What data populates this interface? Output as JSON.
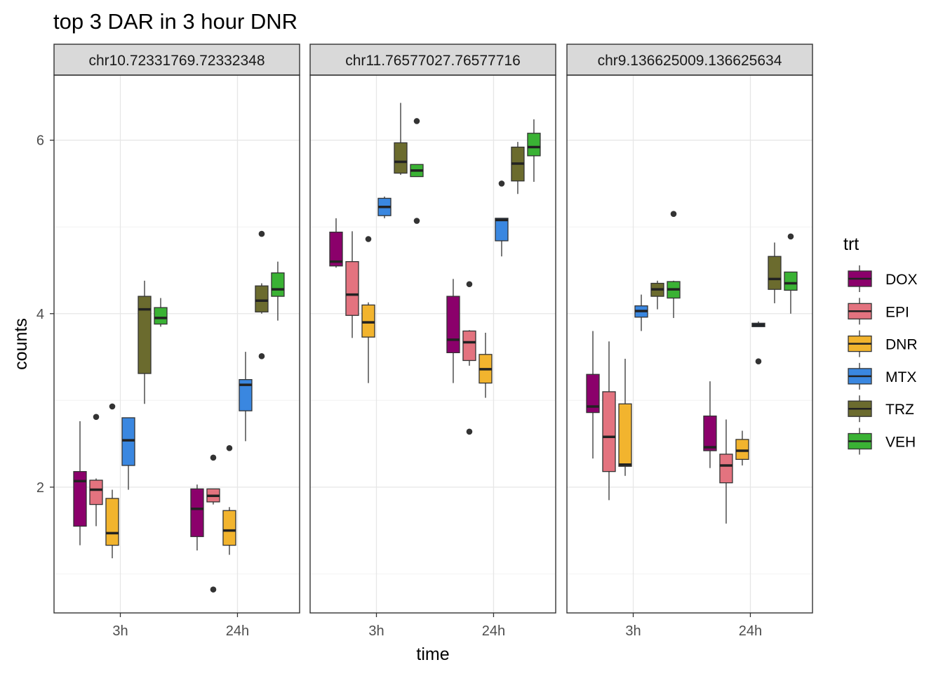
{
  "chart_data": {
    "type": "box",
    "title": "top 3 DAR in 3 hour DNR",
    "xlabel": "time",
    "ylabel": "counts",
    "ylim": [
      0.55,
      6.75
    ],
    "y_ticks": [
      2,
      4,
      6
    ],
    "categories": [
      "3h",
      "24h"
    ],
    "grid": true,
    "legend_placement": "right",
    "legend": {
      "title": "trt",
      "entries": [
        {
          "name": "DOX",
          "color": "#8B006B"
        },
        {
          "name": "EPI",
          "color": "#E3737F"
        },
        {
          "name": "DNR",
          "color": "#F2B42E"
        },
        {
          "name": "MTX",
          "color": "#3A87E0"
        },
        {
          "name": "TRZ",
          "color": "#6B6B2E"
        },
        {
          "name": "VEH",
          "color": "#3AB234"
        }
      ]
    },
    "panels": [
      {
        "strip": "chr10.72331769.72332348",
        "groups": {
          "3h": [
            {
              "trt": "DOX",
              "min": 1.33,
              "q1": 1.55,
              "median": 2.07,
              "q3": 2.18,
              "max": 2.76,
              "outliers": []
            },
            {
              "trt": "EPI",
              "min": 1.55,
              "q1": 1.8,
              "median": 1.97,
              "q3": 2.08,
              "max": 2.1,
              "outliers": [
                2.81
              ]
            },
            {
              "trt": "DNR",
              "min": 1.18,
              "q1": 1.33,
              "median": 1.47,
              "q3": 1.87,
              "max": 1.97,
              "outliers": [
                2.93
              ]
            },
            {
              "trt": "MTX",
              "min": 1.97,
              "q1": 2.25,
              "median": 2.54,
              "q3": 2.8,
              "max": 2.8,
              "outliers": []
            },
            {
              "trt": "TRZ",
              "min": 2.96,
              "q1": 3.31,
              "median": 4.05,
              "q3": 4.2,
              "max": 4.38,
              "outliers": []
            },
            {
              "trt": "VEH",
              "min": 3.85,
              "q1": 3.88,
              "median": 3.95,
              "q3": 4.07,
              "max": 4.18,
              "outliers": []
            }
          ],
          "24h": [
            {
              "trt": "DOX",
              "min": 1.27,
              "q1": 1.43,
              "median": 1.75,
              "q3": 1.98,
              "max": 2.03,
              "outliers": []
            },
            {
              "trt": "EPI",
              "min": 1.8,
              "q1": 1.83,
              "median": 1.9,
              "q3": 1.98,
              "max": 1.98,
              "outliers": [
                2.34,
                0.82
              ]
            },
            {
              "trt": "DNR",
              "min": 1.22,
              "q1": 1.33,
              "median": 1.5,
              "q3": 1.73,
              "max": 1.77,
              "outliers": [
                2.45
              ]
            },
            {
              "trt": "MTX",
              "min": 2.53,
              "q1": 2.88,
              "median": 3.18,
              "q3": 3.24,
              "max": 3.56,
              "outliers": []
            },
            {
              "trt": "TRZ",
              "min": 4.0,
              "q1": 4.02,
              "median": 4.15,
              "q3": 4.32,
              "max": 4.35,
              "outliers": [
                4.92,
                3.51
              ]
            },
            {
              "trt": "VEH",
              "min": 3.92,
              "q1": 4.2,
              "median": 4.28,
              "q3": 4.47,
              "max": 4.6,
              "outliers": []
            }
          ]
        }
      },
      {
        "strip": "chr11.76577027.76577716",
        "groups": {
          "3h": [
            {
              "trt": "DOX",
              "min": 4.53,
              "q1": 4.55,
              "median": 4.6,
              "q3": 4.94,
              "max": 5.1,
              "outliers": []
            },
            {
              "trt": "EPI",
              "min": 3.72,
              "q1": 3.98,
              "median": 4.22,
              "q3": 4.6,
              "max": 4.95,
              "outliers": []
            },
            {
              "trt": "DNR",
              "min": 3.2,
              "q1": 3.73,
              "median": 3.9,
              "q3": 4.1,
              "max": 4.13,
              "outliers": [
                4.86
              ]
            },
            {
              "trt": "MTX",
              "min": 5.1,
              "q1": 5.13,
              "median": 5.23,
              "q3": 5.33,
              "max": 5.35,
              "outliers": []
            },
            {
              "trt": "TRZ",
              "min": 5.6,
              "q1": 5.62,
              "median": 5.75,
              "q3": 5.97,
              "max": 6.43,
              "outliers": []
            },
            {
              "trt": "VEH",
              "min": 5.58,
              "q1": 5.58,
              "median": 5.65,
              "q3": 5.72,
              "max": 5.72,
              "outliers": [
                6.22,
                5.07
              ]
            }
          ],
          "24h": [
            {
              "trt": "DOX",
              "min": 3.2,
              "q1": 3.55,
              "median": 3.7,
              "q3": 4.2,
              "max": 4.4,
              "outliers": []
            },
            {
              "trt": "EPI",
              "min": 3.4,
              "q1": 3.46,
              "median": 3.67,
              "q3": 3.8,
              "max": 3.81,
              "outliers": [
                4.34,
                2.64
              ]
            },
            {
              "trt": "DNR",
              "min": 3.03,
              "q1": 3.2,
              "median": 3.36,
              "q3": 3.53,
              "max": 3.78,
              "outliers": []
            },
            {
              "trt": "MTX",
              "min": 4.66,
              "q1": 4.84,
              "median": 5.08,
              "q3": 5.1,
              "max": 5.1,
              "outliers": [
                5.5
              ]
            },
            {
              "trt": "TRZ",
              "min": 5.38,
              "q1": 5.53,
              "median": 5.73,
              "q3": 5.92,
              "max": 5.98,
              "outliers": []
            },
            {
              "trt": "VEH",
              "min": 5.52,
              "q1": 5.82,
              "median": 5.92,
              "q3": 6.08,
              "max": 6.24,
              "outliers": []
            }
          ]
        }
      },
      {
        "strip": "chr9.136625009.136625634",
        "groups": {
          "3h": [
            {
              "trt": "DOX",
              "min": 2.33,
              "q1": 2.86,
              "median": 2.93,
              "q3": 3.3,
              "max": 3.8,
              "outliers": []
            },
            {
              "trt": "EPI",
              "min": 1.85,
              "q1": 2.18,
              "median": 2.58,
              "q3": 3.1,
              "max": 3.68,
              "outliers": []
            },
            {
              "trt": "DNR",
              "min": 2.13,
              "q1": 2.24,
              "median": 2.26,
              "q3": 2.96,
              "max": 3.48,
              "outliers": []
            },
            {
              "trt": "MTX",
              "min": 3.8,
              "q1": 3.96,
              "median": 4.03,
              "q3": 4.09,
              "max": 4.22,
              "outliers": []
            },
            {
              "trt": "TRZ",
              "min": 4.05,
              "q1": 4.2,
              "median": 4.28,
              "q3": 4.35,
              "max": 4.38,
              "outliers": []
            },
            {
              "trt": "VEH",
              "min": 3.95,
              "q1": 4.18,
              "median": 4.28,
              "q3": 4.37,
              "max": 4.38,
              "outliers": [
                5.15
              ]
            }
          ],
          "24h": [
            {
              "trt": "DOX",
              "min": 2.22,
              "q1": 2.42,
              "median": 2.46,
              "q3": 2.82,
              "max": 3.22,
              "outliers": []
            },
            {
              "trt": "EPI",
              "min": 1.58,
              "q1": 2.05,
              "median": 2.25,
              "q3": 2.38,
              "max": 2.78,
              "outliers": []
            },
            {
              "trt": "DNR",
              "min": 2.25,
              "q1": 2.32,
              "median": 2.42,
              "q3": 2.55,
              "max": 2.65,
              "outliers": []
            },
            {
              "trt": "MTX",
              "min": 3.85,
              "q1": 3.85,
              "median": 3.87,
              "q3": 3.89,
              "max": 3.91,
              "outliers": [
                3.45
              ]
            },
            {
              "trt": "TRZ",
              "min": 4.12,
              "q1": 4.28,
              "median": 4.4,
              "q3": 4.66,
              "max": 4.82,
              "outliers": []
            },
            {
              "trt": "VEH",
              "min": 4.0,
              "q1": 4.27,
              "median": 4.35,
              "q3": 4.48,
              "max": 4.48,
              "outliers": [
                4.89
              ]
            }
          ]
        }
      }
    ]
  }
}
